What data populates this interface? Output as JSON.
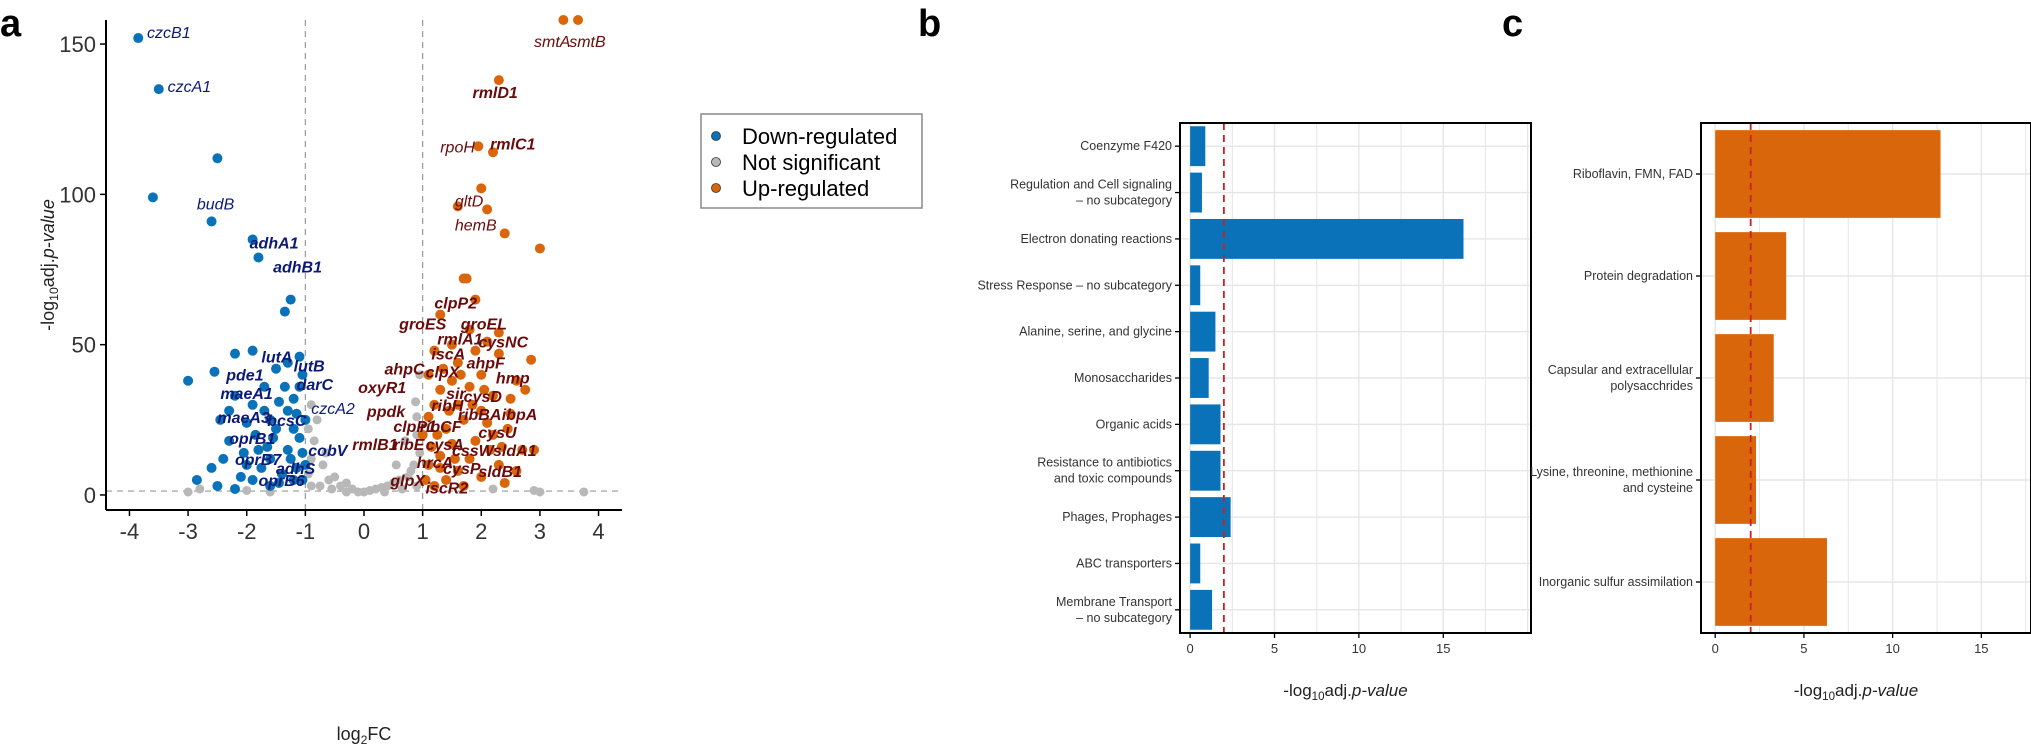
{
  "panels": {
    "a": "a",
    "b": "b",
    "c": "c"
  },
  "colors": {
    "down": "#0a72b8",
    "ns": "#b8b8b8",
    "up": "#d9660a",
    "down_label": "#0b1a78",
    "up_label": "#6b0a0a",
    "threshold": "#cc1f1f"
  },
  "chart_data": [
    {
      "type": "scatter",
      "panel": "a",
      "xlabel": {
        "main": "log",
        "sub": "2",
        "tail": "FC"
      },
      "ylabel": {
        "pre": "-log",
        "sub": "10",
        "mid": "adj.",
        "italic": "p-value"
      },
      "xlim": [
        -4.4,
        4.4
      ],
      "ylim": [
        -5,
        158
      ],
      "xticks": [
        -4,
        -3,
        -2,
        -1,
        0,
        1,
        2,
        3,
        4
      ],
      "yticks": [
        0,
        50,
        100,
        150
      ],
      "thresholds": {
        "x": [
          -1,
          1
        ],
        "y": 1.3
      },
      "legend": {
        "position": "top-right",
        "items": [
          {
            "key": "down",
            "label": "Down-regulated"
          },
          {
            "key": "ns",
            "label": "Not significant"
          },
          {
            "key": "up",
            "label": "Up-regulated"
          }
        ]
      },
      "points": {
        "down": [
          [
            -3.85,
            152
          ],
          [
            -3.5,
            135
          ],
          [
            -2.5,
            112
          ],
          [
            -3.6,
            99
          ],
          [
            -2.6,
            91
          ],
          [
            -1.9,
            85
          ],
          [
            -1.8,
            79
          ],
          [
            -1.25,
            65
          ],
          [
            -1.35,
            61
          ],
          [
            -2.2,
            47
          ],
          [
            -2.55,
            41
          ],
          [
            -3.0,
            38
          ],
          [
            -1.9,
            48
          ],
          [
            -1.5,
            42
          ],
          [
            -1.3,
            44
          ],
          [
            -1.1,
            46
          ],
          [
            -1.05,
            40
          ],
          [
            -1.7,
            36
          ],
          [
            -2.2,
            33
          ],
          [
            -1.45,
            31
          ],
          [
            -2.45,
            25
          ],
          [
            -1.2,
            22
          ],
          [
            -2.85,
            5
          ],
          [
            -2.3,
            18
          ],
          [
            -1.8,
            15
          ],
          [
            -1.1,
            19
          ],
          [
            -1.6,
            12
          ],
          [
            -2.0,
            10
          ],
          [
            -2.1,
            6
          ],
          [
            -1.3,
            28
          ],
          [
            -1.6,
            25
          ],
          [
            -2.5,
            3
          ],
          [
            -2.6,
            9
          ],
          [
            -1.15,
            9
          ],
          [
            -1.4,
            7
          ],
          [
            -1.05,
            5
          ],
          [
            -1.05,
            14
          ],
          [
            -1.55,
            19
          ],
          [
            -1.9,
            5
          ],
          [
            -1.2,
            32
          ],
          [
            -1.7,
            28
          ],
          [
            -1.1,
            36
          ],
          [
            -2.0,
            24
          ],
          [
            -1.3,
            15
          ],
          [
            -1.75,
            9
          ],
          [
            -1.45,
            4
          ],
          [
            -2.2,
            2
          ],
          [
            -1.25,
            12
          ],
          [
            -1.5,
            22
          ],
          [
            -1.0,
            25
          ],
          [
            -1.35,
            36
          ],
          [
            -2.05,
            14
          ],
          [
            -1.85,
            20
          ],
          [
            -1.65,
            16
          ],
          [
            -1.2,
            5
          ],
          [
            -2.4,
            12
          ],
          [
            -1.0,
            10
          ],
          [
            -1.6,
            3
          ],
          [
            -1.9,
            30
          ],
          [
            -1.15,
            27
          ],
          [
            -2.3,
            28
          ]
        ],
        "ns": [
          [
            -0.9,
            30
          ],
          [
            -0.8,
            25
          ],
          [
            -0.85,
            18
          ],
          [
            -0.9,
            12
          ],
          [
            -0.95,
            7
          ],
          [
            -0.6,
            5
          ],
          [
            -0.4,
            3
          ],
          [
            -0.2,
            2
          ],
          [
            0,
            1
          ],
          [
            0.2,
            2
          ],
          [
            0.4,
            3
          ],
          [
            0.6,
            5
          ],
          [
            0.8,
            8
          ],
          [
            0.95,
            14
          ],
          [
            0.9,
            20
          ],
          [
            0.7,
            18
          ],
          [
            0.9,
            26
          ],
          [
            0.95,
            40
          ],
          [
            0.85,
            10
          ],
          [
            -0.7,
            10
          ],
          [
            -0.5,
            6
          ],
          [
            -0.3,
            4
          ],
          [
            0.1,
            1.5
          ],
          [
            0.3,
            2.5
          ],
          [
            0.5,
            4
          ],
          [
            0.75,
            6
          ],
          [
            -0.1,
            1
          ],
          [
            -0.75,
            3
          ],
          [
            0.65,
            2
          ],
          [
            -0.55,
            2
          ],
          [
            -0.3,
            1
          ],
          [
            0.35,
            1
          ],
          [
            2.2,
            2
          ],
          [
            3.0,
            1
          ],
          [
            3.75,
            1
          ],
          [
            2.9,
            1.5
          ],
          [
            -2.8,
            2
          ],
          [
            -2.0,
            1.5
          ],
          [
            -1.6,
            1
          ],
          [
            -3.0,
            1
          ],
          [
            -0.95,
            22
          ],
          [
            -0.65,
            14
          ],
          [
            0.55,
            10
          ],
          [
            0.88,
            31
          ],
          [
            -0.9,
            3
          ],
          [
            0.9,
            3
          ]
        ],
        "up": [
          [
            3.4,
            158
          ],
          [
            3.65,
            158
          ],
          [
            2.3,
            138
          ],
          [
            1.95,
            116
          ],
          [
            2.2,
            114
          ],
          [
            2.0,
            102
          ],
          [
            1.6,
            96
          ],
          [
            2.1,
            95
          ],
          [
            2.4,
            87
          ],
          [
            3.0,
            82
          ],
          [
            1.75,
            72
          ],
          [
            1.7,
            72
          ],
          [
            1.9,
            65
          ],
          [
            1.3,
            60
          ],
          [
            1.8,
            55
          ],
          [
            2.3,
            54
          ],
          [
            2.1,
            51
          ],
          [
            1.5,
            50
          ],
          [
            1.6,
            44
          ],
          [
            2.3,
            47
          ],
          [
            1.2,
            48
          ],
          [
            2.0,
            40
          ],
          [
            2.85,
            45
          ],
          [
            1.1,
            40
          ],
          [
            1.5,
            38
          ],
          [
            2.6,
            38
          ],
          [
            1.8,
            36
          ],
          [
            2.2,
            33
          ],
          [
            1.3,
            35
          ],
          [
            1.6,
            30
          ],
          [
            2.0,
            28
          ],
          [
            1.2,
            30
          ],
          [
            1.7,
            25
          ],
          [
            2.5,
            27
          ],
          [
            1.1,
            26
          ],
          [
            1.4,
            22
          ],
          [
            2.2,
            20
          ],
          [
            1.9,
            18
          ],
          [
            1.0,
            20
          ],
          [
            1.5,
            17
          ],
          [
            2.7,
            15
          ],
          [
            2.9,
            15
          ],
          [
            1.3,
            13
          ],
          [
            1.8,
            12
          ],
          [
            2.3,
            10
          ],
          [
            1.1,
            10
          ],
          [
            1.6,
            8
          ],
          [
            2.0,
            6
          ],
          [
            1.4,
            5
          ],
          [
            1.2,
            3
          ],
          [
            2.4,
            4
          ],
          [
            1.7,
            3
          ],
          [
            2.1,
            24
          ],
          [
            1.35,
            42
          ],
          [
            1.9,
            48
          ],
          [
            2.5,
            32
          ],
          [
            1.15,
            16
          ],
          [
            1.55,
            12
          ],
          [
            2.15,
            15
          ],
          [
            2.35,
            16
          ],
          [
            1.05,
            5
          ],
          [
            2.6,
            8
          ],
          [
            1.25,
            20
          ],
          [
            1.45,
            28
          ],
          [
            1.85,
            30
          ],
          [
            2.05,
            35
          ],
          [
            1.65,
            40
          ],
          [
            2.45,
            22
          ],
          [
            1.3,
            9
          ],
          [
            2.75,
            35
          ]
        ]
      },
      "labels": [
        {
          "t": "czcB1",
          "x": -3.7,
          "y": 152,
          "g": "down"
        },
        {
          "t": "czcA1",
          "x": -3.35,
          "y": 134,
          "g": "down"
        },
        {
          "t": "budB",
          "x": -2.85,
          "y": 95,
          "g": "down"
        },
        {
          "t": "adhA1",
          "x": -1.95,
          "y": 82,
          "g": "down_b"
        },
        {
          "t": "adhB1",
          "x": -1.55,
          "y": 74,
          "g": "down_b"
        },
        {
          "t": "lutA",
          "x": -1.75,
          "y": 44,
          "g": "down_b"
        },
        {
          "t": "lutB",
          "x": -1.2,
          "y": 41,
          "g": "down_b"
        },
        {
          "t": "pde1",
          "x": -2.35,
          "y": 38,
          "g": "down_b"
        },
        {
          "t": "darC",
          "x": -1.15,
          "y": 35,
          "g": "down_b"
        },
        {
          "t": "maeA1",
          "x": -2.45,
          "y": 32,
          "g": "down_b"
        },
        {
          "t": "czcA2",
          "x": -0.9,
          "y": 27,
          "g": "down"
        },
        {
          "t": "maeA3",
          "x": -2.5,
          "y": 24,
          "g": "down_b"
        },
        {
          "t": "bcsC",
          "x": -1.65,
          "y": 23,
          "g": "down_b"
        },
        {
          "t": "oprB1",
          "x": -2.3,
          "y": 17,
          "g": "down_b"
        },
        {
          "t": "cobV",
          "x": -0.95,
          "y": 13,
          "g": "down_b"
        },
        {
          "t": "oprB7",
          "x": -2.2,
          "y": 10,
          "g": "down_b"
        },
        {
          "t": "adhS",
          "x": -1.5,
          "y": 7,
          "g": "down_b"
        },
        {
          "t": "oprB6",
          "x": -1.8,
          "y": 3,
          "g": "down_b"
        },
        {
          "t": "smtA",
          "x": 2.9,
          "y": 149,
          "g": "up"
        },
        {
          "t": "smtB",
          "x": 3.5,
          "y": 149,
          "g": "up"
        },
        {
          "t": "rmlD1",
          "x": 1.85,
          "y": 132,
          "g": "up_b"
        },
        {
          "t": "rpoH",
          "x": 1.3,
          "y": 114,
          "g": "up"
        },
        {
          "t": "rmlC1",
          "x": 2.15,
          "y": 115,
          "g": "up_b"
        },
        {
          "t": "gltD",
          "x": 1.55,
          "y": 96,
          "g": "up"
        },
        {
          "t": "hemB",
          "x": 1.55,
          "y": 88,
          "g": "up"
        },
        {
          "t": "clpP2",
          "x": 1.2,
          "y": 62,
          "g": "up_b"
        },
        {
          "t": "groES",
          "x": 0.6,
          "y": 55,
          "g": "up_b"
        },
        {
          "t": "groEL",
          "x": 1.65,
          "y": 55,
          "g": "up_b"
        },
        {
          "t": "rmlA1",
          "x": 1.25,
          "y": 50,
          "g": "up_b"
        },
        {
          "t": "cysNC",
          "x": 1.95,
          "y": 49,
          "g": "up_b"
        },
        {
          "t": "iscA",
          "x": 1.15,
          "y": 45,
          "g": "up_b"
        },
        {
          "t": "ahpF",
          "x": 1.75,
          "y": 42,
          "g": "up_b"
        },
        {
          "t": "ahpC",
          "x": 0.35,
          "y": 40,
          "g": "up_b"
        },
        {
          "t": "clpX",
          "x": 1.05,
          "y": 39,
          "g": "up_b"
        },
        {
          "t": "hmp",
          "x": 2.25,
          "y": 37,
          "g": "up_b"
        },
        {
          "t": "oxyR1",
          "x": -0.1,
          "y": 34,
          "g": "up_b"
        },
        {
          "t": "sir",
          "x": 1.4,
          "y": 32,
          "g": "up_b"
        },
        {
          "t": "cysD",
          "x": 1.7,
          "y": 31,
          "g": "up_b"
        },
        {
          "t": "ribH",
          "x": 1.15,
          "y": 28,
          "g": "up_b"
        },
        {
          "t": "ppdk",
          "x": 0.05,
          "y": 26,
          "g": "up_b"
        },
        {
          "t": "ribBA",
          "x": 1.6,
          "y": 25,
          "g": "up_b"
        },
        {
          "t": "ibpA",
          "x": 2.35,
          "y": 25,
          "g": "up_b"
        },
        {
          "t": "clpP1",
          "x": 0.5,
          "y": 21,
          "g": "up_b"
        },
        {
          "t": "ribCF",
          "x": 0.95,
          "y": 21,
          "g": "up_b"
        },
        {
          "t": "cysU",
          "x": 1.95,
          "y": 19,
          "g": "up_b"
        },
        {
          "t": "rmlB1",
          "x": -0.2,
          "y": 15,
          "g": "up_b"
        },
        {
          "t": "ribE",
          "x": 0.5,
          "y": 15,
          "g": "up_b"
        },
        {
          "t": "cysA",
          "x": 1.05,
          "y": 15,
          "g": "up_b"
        },
        {
          "t": "cssW",
          "x": 1.5,
          "y": 13,
          "g": "up_b"
        },
        {
          "t": "sldA1",
          "x": 2.2,
          "y": 13,
          "g": "up_b"
        },
        {
          "t": "hrcA",
          "x": 0.9,
          "y": 9,
          "g": "up_b"
        },
        {
          "t": "cysP",
          "x": 1.35,
          "y": 7,
          "g": "up_b"
        },
        {
          "t": "sldB1",
          "x": 1.95,
          "y": 6,
          "g": "up_b"
        },
        {
          "t": "glpX",
          "x": 0.45,
          "y": 3,
          "g": "up_b"
        },
        {
          "t": "iscR2",
          "x": 1.05,
          "y": 0.5,
          "g": "up_b"
        }
      ]
    },
    {
      "type": "bar",
      "panel": "b",
      "orientation": "horizontal",
      "categories": [
        [
          "Coenzyme F420"
        ],
        [
          "Regulation and Cell signaling",
          "– no subcategory"
        ],
        [
          "Electron donating reactions"
        ],
        [
          "Stress Response – no subcategory"
        ],
        [
          "Alanine, serine, and glycine"
        ],
        [
          "Monosaccharides"
        ],
        [
          "Organic acids"
        ],
        [
          "Resistance to antibiotics",
          "and toxic compounds"
        ],
        [
          "Phages, Prophages"
        ],
        [
          "ABC transporters"
        ],
        [
          "Membrane Transport",
          "– no subcategory"
        ]
      ],
      "values": [
        0.9,
        0.7,
        16.2,
        0.6,
        1.5,
        1.1,
        1.8,
        1.8,
        2.4,
        0.6,
        1.3
      ],
      "xlim": [
        -0.6,
        20.2
      ],
      "xticks": [
        0,
        5,
        10,
        15
      ],
      "threshold": 2,
      "xlabel": {
        "pre": "-log",
        "sub": "10",
        "mid": "adj.",
        "italic": "p-value"
      }
    },
    {
      "type": "bar",
      "panel": "c",
      "orientation": "horizontal",
      "categories": [
        [
          "Riboflavin, FMN, FAD"
        ],
        [
          "Protein degradation"
        ],
        [
          "Capsular and extracellular",
          "polysacchrides"
        ],
        [
          "Lysine, threonine, methionine",
          "and cysteine"
        ],
        [
          "Inorganic sulfur assimilation"
        ]
      ],
      "values": [
        12.7,
        4.0,
        3.3,
        2.3,
        6.3
      ],
      "xlim": [
        -0.8,
        17.8
      ],
      "xticks": [
        0,
        5,
        10,
        15
      ],
      "threshold": 2,
      "xlabel": {
        "pre": "-log",
        "sub": "10",
        "mid": "adj.",
        "italic": "p-value"
      }
    }
  ]
}
